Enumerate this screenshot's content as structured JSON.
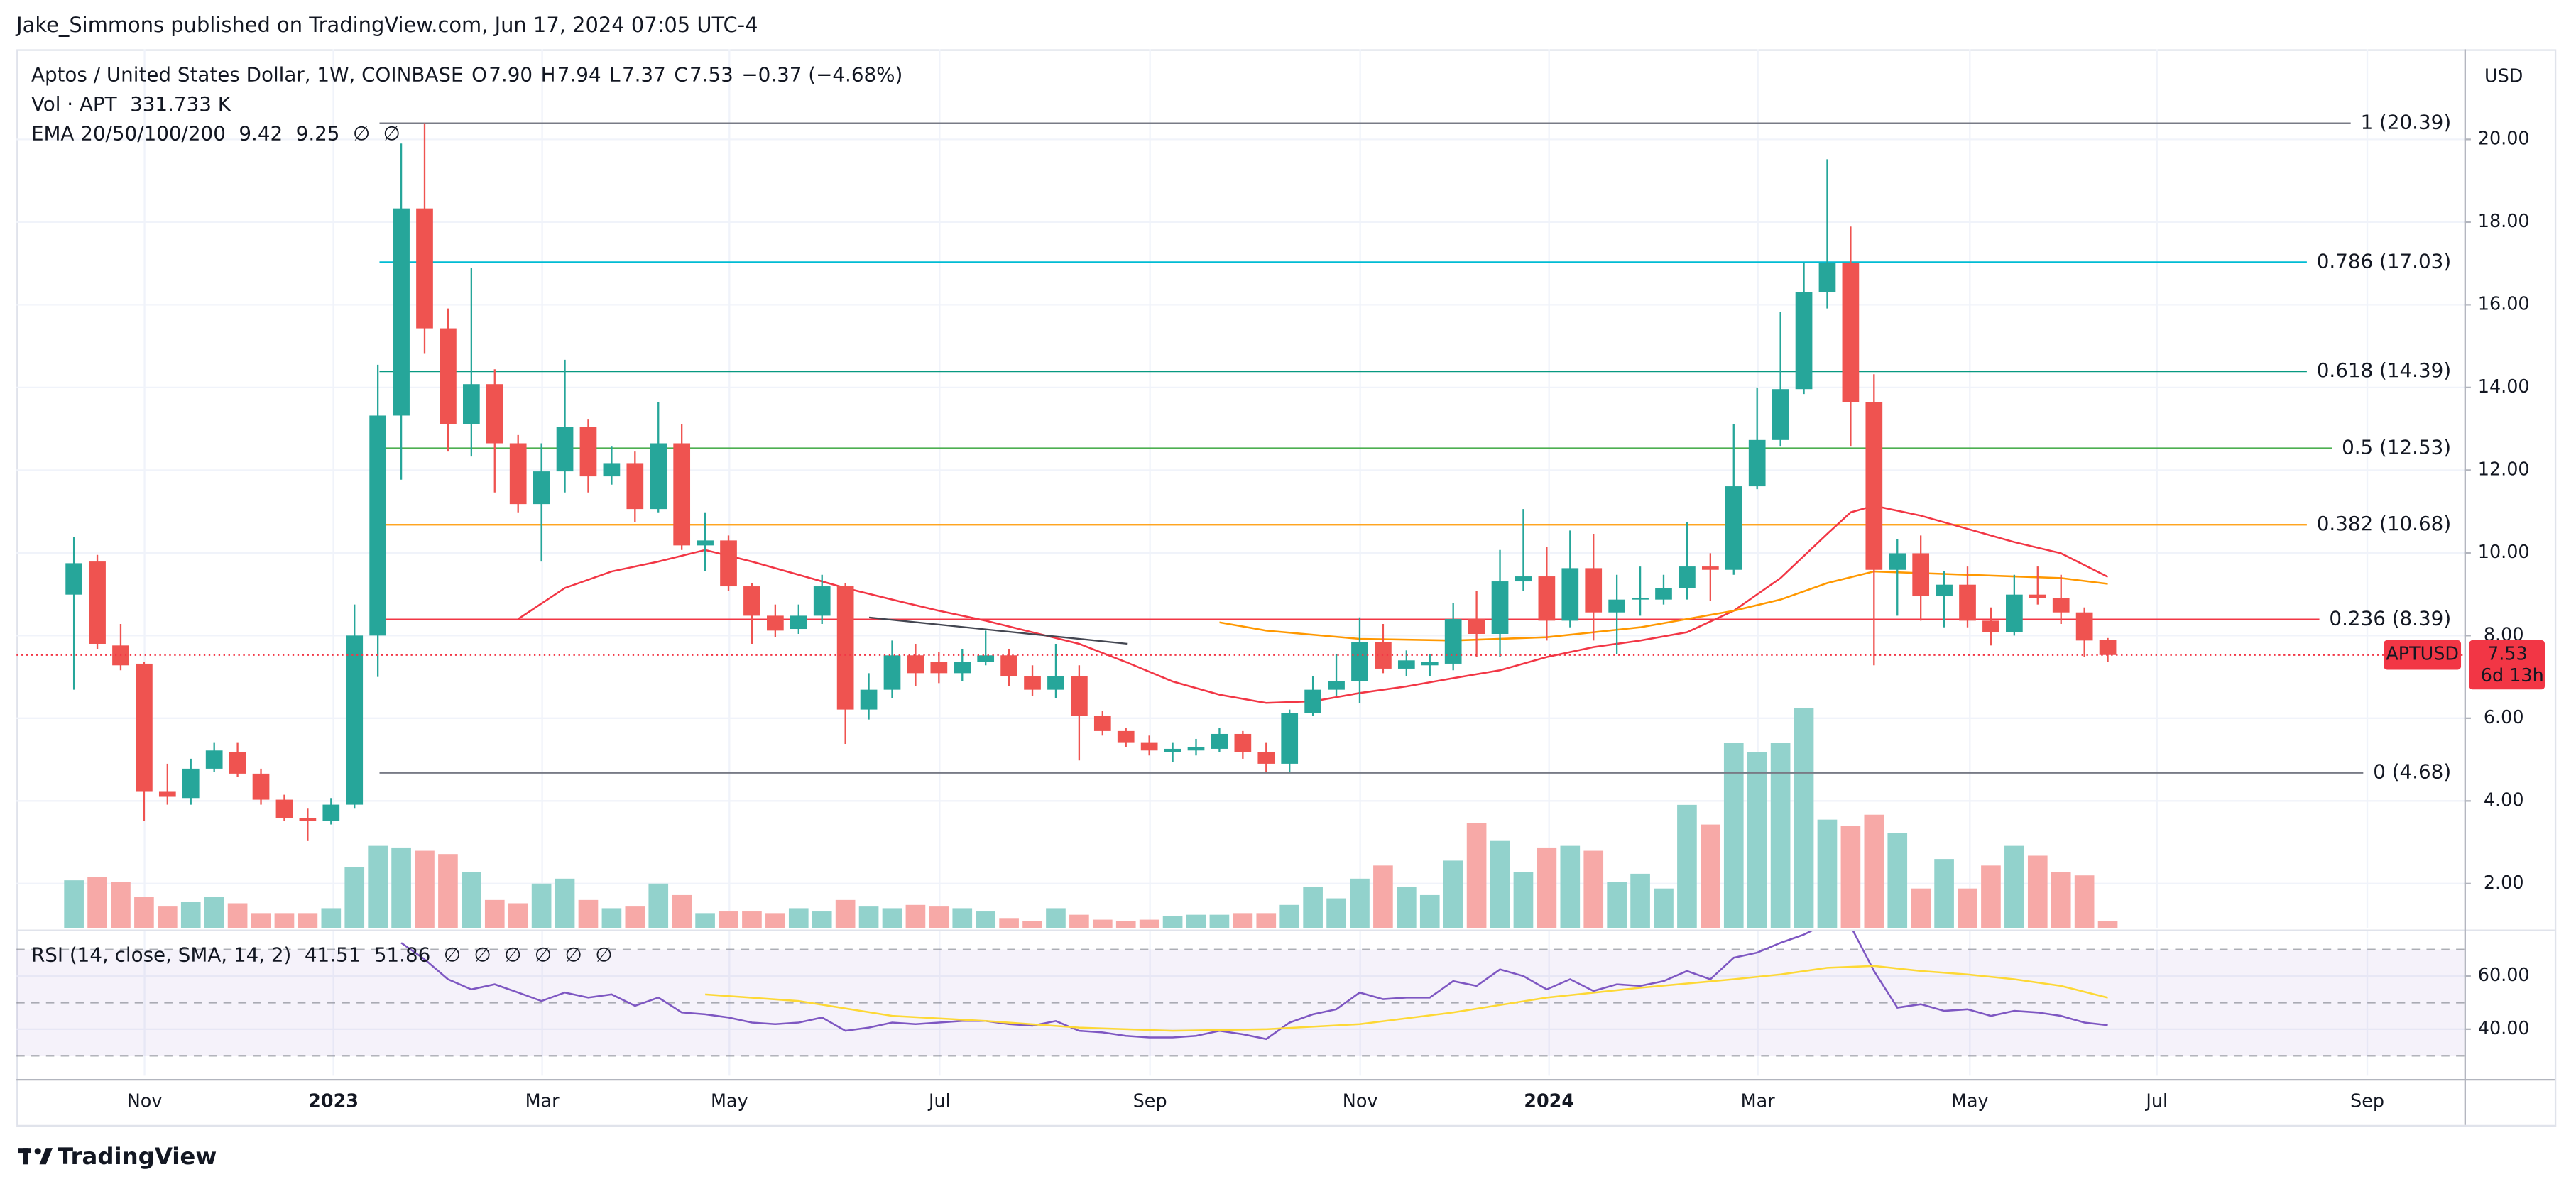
{
  "header": {
    "byline": "Jake_Simmons published on TradingView.com, Jun 17, 2024 07:05 UTC-4"
  },
  "footer": {
    "brand": "TradingView"
  },
  "chart_data": [
    {
      "type": "candlestick",
      "title": "Aptos / United States Dollar, 1W, COINBASE",
      "ohlc_legend": [
        {
          "label": "O",
          "value": "7.90"
        },
        {
          "label": "H",
          "value": "7.94"
        },
        {
          "label": "L",
          "value": "7.37"
        },
        {
          "label": "C",
          "value": "7.53"
        }
      ],
      "change": "−0.37 (−4.68%)",
      "currency": "USD",
      "up_color": "#26a69a",
      "down_color": "#ef5350",
      "candles": {
        "open": [
          8.99,
          9.79,
          7.76,
          7.32,
          4.22,
          4.07,
          4.78,
          5.18,
          4.66,
          4.03,
          3.59,
          3.51,
          3.91,
          8.0,
          13.32,
          18.33,
          15.43,
          13.12,
          14.08,
          12.65,
          11.18,
          11.97,
          13.04,
          11.85,
          12.17,
          11.06,
          12.65,
          10.18,
          10.3,
          9.19,
          8.48,
          8.16,
          8.48,
          9.19,
          6.21,
          6.69,
          7.52,
          7.36,
          7.09,
          7.36,
          7.52,
          7.01,
          6.69,
          7.01,
          6.05,
          5.69,
          5.42,
          5.18,
          5.22,
          5.26,
          5.62,
          5.18,
          4.9,
          6.13,
          6.69,
          6.89,
          7.84,
          7.2,
          7.28,
          7.32,
          8.4,
          8.04,
          9.31,
          9.43,
          8.36,
          9.63,
          8.56,
          8.87,
          8.87,
          9.15,
          9.67,
          9.59,
          11.61,
          12.73,
          13.96,
          16.3,
          17.02,
          13.64,
          9.59,
          9.99,
          8.95,
          9.23,
          8.36,
          8.08,
          8.99,
          8.91,
          8.56,
          7.9
        ],
        "high": [
          10.38,
          9.95,
          8.28,
          7.36,
          4.9,
          5.02,
          5.42,
          5.42,
          4.78,
          4.15,
          3.83,
          4.07,
          8.75,
          14.55,
          19.9,
          20.39,
          15.91,
          16.9,
          14.44,
          12.85,
          12.65,
          14.67,
          13.24,
          12.57,
          12.45,
          13.64,
          13.12,
          10.98,
          10.42,
          9.27,
          8.75,
          8.75,
          9.47,
          9.27,
          7.09,
          7.88,
          7.8,
          7.6,
          7.68,
          8.12,
          7.68,
          7.28,
          7.8,
          7.28,
          6.17,
          5.77,
          5.58,
          5.42,
          5.5,
          5.77,
          5.69,
          5.42,
          6.21,
          7.01,
          7.56,
          8.44,
          8.28,
          7.64,
          7.56,
          8.79,
          9.07,
          10.07,
          11.06,
          10.14,
          10.54,
          10.46,
          9.47,
          9.67,
          9.47,
          10.74,
          9.99,
          13.12,
          14.0,
          15.83,
          17.02,
          19.52,
          17.89,
          14.32,
          10.34,
          10.42,
          9.55,
          9.67,
          8.68,
          9.47,
          9.67,
          9.47,
          8.68,
          7.94
        ],
        "low": [
          6.69,
          7.68,
          7.16,
          3.51,
          3.91,
          3.91,
          4.7,
          4.58,
          3.91,
          3.51,
          3.03,
          3.43,
          3.83,
          7.0,
          11.77,
          14.83,
          12.45,
          12.33,
          11.46,
          10.98,
          9.79,
          11.46,
          11.46,
          11.65,
          10.74,
          10.98,
          10.07,
          9.55,
          9.07,
          7.8,
          7.96,
          8.04,
          8.28,
          5.38,
          5.97,
          6.49,
          6.77,
          6.85,
          6.89,
          7.28,
          6.77,
          6.53,
          6.49,
          4.98,
          5.58,
          5.3,
          5.1,
          4.94,
          5.1,
          5.18,
          5.02,
          4.7,
          4.7,
          6.05,
          6.53,
          6.37,
          7.09,
          7.01,
          7.01,
          7.16,
          7.48,
          7.48,
          9.07,
          7.88,
          8.2,
          7.88,
          7.56,
          8.48,
          8.75,
          8.87,
          8.83,
          9.47,
          11.54,
          12.57,
          13.84,
          15.91,
          12.57,
          7.28,
          8.48,
          8.36,
          8.2,
          8.2,
          7.76,
          8.0,
          8.75,
          8.28,
          7.48,
          7.37
        ],
        "close": [
          9.75,
          7.8,
          7.28,
          4.22,
          4.1,
          4.78,
          5.22,
          4.66,
          4.03,
          3.59,
          3.51,
          3.91,
          8.0,
          13.32,
          18.33,
          15.43,
          13.12,
          14.08,
          12.65,
          11.18,
          11.97,
          13.04,
          11.85,
          12.17,
          11.06,
          12.65,
          10.18,
          10.3,
          9.19,
          8.48,
          8.12,
          8.48,
          9.19,
          6.21,
          6.69,
          7.52,
          7.09,
          7.09,
          7.36,
          7.52,
          7.01,
          6.69,
          7.01,
          6.05,
          5.69,
          5.42,
          5.22,
          5.26,
          5.3,
          5.62,
          5.18,
          4.9,
          6.13,
          6.69,
          6.89,
          7.84,
          7.2,
          7.4,
          7.36,
          8.4,
          8.04,
          9.31,
          9.43,
          8.36,
          9.63,
          8.56,
          8.87,
          8.91,
          9.15,
          9.67,
          9.59,
          11.61,
          12.73,
          13.96,
          16.3,
          17.02,
          13.64,
          9.59,
          9.99,
          8.95,
          9.23,
          8.36,
          8.08,
          8.99,
          8.91,
          8.56,
          7.88,
          7.53
        ]
      },
      "volume": {
        "name": "Vol · APT",
        "last_label": "331.733 K",
        "up_color": "#92d2cc",
        "down_color": "#f7a9a7",
        "ylim": [
          0,
          45000
        ],
        "values": [
          2436,
          2604,
          2352,
          1596,
          1092,
          1344,
          1596,
          1260,
          756,
          756,
          756,
          1008,
          3108,
          4200,
          4116,
          3948,
          3780,
          2856,
          1428,
          1260,
          2268,
          2520,
          1428,
          1008,
          1092,
          2268,
          1680,
          756,
          840,
          840,
          756,
          1008,
          840,
          1428,
          1092,
          1008,
          1176,
          1092,
          1008,
          840,
          504,
          336,
          1008,
          672,
          420,
          336,
          420,
          588,
          672,
          672,
          756,
          756,
          1176,
          2100,
          1512,
          2520,
          3192,
          2100,
          1680,
          3444,
          5376,
          4452,
          2856,
          4116,
          4200,
          3948,
          2352,
          2772,
          2016,
          6300,
          5292,
          9492,
          8988,
          9492,
          11256,
          5544,
          5208,
          5796,
          4872,
          2016,
          3528,
          2016,
          3192,
          4200,
          3696,
          2856,
          2688,
          331.733
        ]
      },
      "ema_legend": {
        "name": "EMA 20/50/100/200",
        "values": [
          "9.42",
          "9.25",
          "∅",
          "∅"
        ],
        "colors": [
          "#f23645",
          "#ff9800",
          "#787b86",
          "#787b86"
        ]
      },
      "series": [
        {
          "color": "#f23645",
          "x": [
            19,
            21,
            23,
            25,
            27,
            29,
            31,
            33,
            35,
            37,
            39,
            41,
            43,
            45,
            47,
            49,
            51,
            53,
            55,
            57,
            59,
            61,
            63,
            65,
            67,
            69,
            71,
            73,
            75,
            76,
            77,
            79,
            81,
            83,
            85,
            87
          ],
          "values": [
            8.4,
            9.15,
            9.55,
            9.79,
            10.07,
            9.79,
            9.47,
            9.15,
            8.87,
            8.6,
            8.36,
            8.08,
            7.8,
            7.36,
            6.89,
            6.57,
            6.37,
            6.41,
            6.61,
            6.77,
            6.97,
            7.16,
            7.48,
            7.72,
            7.88,
            8.08,
            8.6,
            9.39,
            10.46,
            10.98,
            11.14,
            10.9,
            10.58,
            10.26,
            9.99,
            9.42
          ]
        },
        {
          "color": "#ff9800",
          "x": [
            49,
            51,
            55,
            59,
            63,
            67,
            71,
            73,
            75,
            77,
            79,
            81,
            83,
            85,
            87
          ],
          "values": [
            8.32,
            8.12,
            7.92,
            7.88,
            7.96,
            8.2,
            8.6,
            8.87,
            9.27,
            9.55,
            9.51,
            9.47,
            9.43,
            9.39,
            9.25
          ]
        }
      ],
      "fib_levels": [
        {
          "label": "1 (20.39)",
          "value": 20.39,
          "color": "#787b86"
        },
        {
          "label": "0.786 (17.03)",
          "value": 17.03,
          "color": "#00bcd4"
        },
        {
          "label": "0.618 (14.39)",
          "value": 14.39,
          "color": "#089981"
        },
        {
          "label": "0.5 (12.53)",
          "value": 12.53,
          "color": "#4caf50"
        },
        {
          "label": "0.382 (10.68)",
          "value": 10.68,
          "color": "#ff9800"
        },
        {
          "label": "0.236 (8.39)",
          "value": 8.39,
          "color": "#f23645"
        },
        {
          "label": "0 (4.68)",
          "value": 4.68,
          "color": "#787b86"
        }
      ],
      "price_label": {
        "symbol": "APTUSD",
        "value": "7.53",
        "countdown": "6d 13h",
        "color": "#f23645"
      },
      "xlim": [
        -2.46,
        102.25
      ],
      "xticks": [
        {
          "value": 3.02,
          "label": "Nov"
        },
        {
          "value": 11.1,
          "label": "2023"
        },
        {
          "value": 20.03,
          "label": "Mar"
        },
        {
          "value": 28.04,
          "label": "May"
        },
        {
          "value": 37.03,
          "label": "Jul"
        },
        {
          "value": 46.03,
          "label": "Sep"
        },
        {
          "value": 55.02,
          "label": "Nov"
        },
        {
          "value": 63.1,
          "label": "2024"
        },
        {
          "value": 72.03,
          "label": "Mar"
        },
        {
          "value": 81.1,
          "label": "May"
        },
        {
          "value": 89.1,
          "label": "Jul"
        },
        {
          "value": 98.1,
          "label": "Sep"
        }
      ],
      "ylim": [
        0.93,
        22.18
      ],
      "yticks": [
        {
          "value": 2,
          "label": "2.00"
        },
        {
          "value": 4,
          "label": "4.00"
        },
        {
          "value": 6,
          "label": "6.00"
        },
        {
          "value": 8,
          "label": "8.00"
        },
        {
          "value": 10,
          "label": "10.00"
        },
        {
          "value": 12,
          "label": "12.00"
        },
        {
          "value": 14,
          "label": "14.00"
        },
        {
          "value": 16,
          "label": "16.00"
        },
        {
          "value": 18,
          "label": "18.00"
        },
        {
          "value": 20,
          "label": "20.00"
        }
      ],
      "grid": true
    },
    {
      "type": "line",
      "title": "RSI (14, close, SMA, 14, 2)",
      "legend_values": [
        "41.51",
        "51.86",
        "∅",
        "∅",
        "∅",
        "∅",
        "∅",
        "∅"
      ],
      "legend_colors": [
        "#7e57c2",
        "#fdd835",
        "#787b86",
        "#787b86",
        "#787b86",
        "#787b86",
        "#787b86",
        "#787b86"
      ],
      "series": [
        {
          "color": "#7e57c2",
          "x": [
            14,
            15,
            16,
            17,
            18,
            19,
            20,
            21,
            22,
            23,
            24,
            25,
            26,
            27,
            28,
            29,
            30,
            31,
            32,
            33,
            34,
            35,
            36,
            37,
            38,
            39,
            40,
            41,
            42,
            43,
            44,
            45,
            46,
            47,
            48,
            49,
            50,
            51,
            52,
            53,
            54,
            55,
            56,
            57,
            58,
            59,
            60,
            61,
            62,
            63,
            64,
            65,
            66,
            67,
            68,
            69,
            70,
            71,
            72,
            73,
            74,
            75,
            76,
            77,
            78,
            79,
            80,
            81,
            82,
            83,
            84,
            85,
            86,
            87
          ],
          "values": [
            72.5,
            66.3,
            58.8,
            55.0,
            56.9,
            53.8,
            50.6,
            53.8,
            51.9,
            53.1,
            48.8,
            51.9,
            46.3,
            45.6,
            44.4,
            42.5,
            41.9,
            42.5,
            44.4,
            39.4,
            40.6,
            42.5,
            41.9,
            42.5,
            43.1,
            43.1,
            41.9,
            41.3,
            43.1,
            39.4,
            38.8,
            37.5,
            36.9,
            36.9,
            37.5,
            39.4,
            38.1,
            36.3,
            42.5,
            45.6,
            47.5,
            53.8,
            51.3,
            51.9,
            51.9,
            58.1,
            56.3,
            62.5,
            60.0,
            55.0,
            58.8,
            54.4,
            56.9,
            56.3,
            58.1,
            61.9,
            58.8,
            66.9,
            68.8,
            72.5,
            75.6,
            80.0,
            78.8,
            61.9,
            48.1,
            49.4,
            46.9,
            47.5,
            45.0,
            46.9,
            46.3,
            45.0,
            42.5,
            41.51
          ]
        },
        {
          "color": "#fdd835",
          "x": [
            27,
            31,
            35,
            39,
            43,
            47,
            51,
            55,
            59,
            63,
            67,
            71,
            73,
            75,
            77,
            79,
            81,
            83,
            85,
            87
          ],
          "values": [
            53.1,
            50.6,
            45.0,
            43.1,
            40.6,
            39.4,
            40.0,
            41.9,
            46.3,
            51.9,
            55.6,
            58.8,
            60.6,
            63.1,
            63.8,
            61.9,
            60.6,
            58.8,
            56.3,
            51.86
          ]
        }
      ],
      "levels": [
        70,
        50,
        30
      ],
      "band_color": "#7e57c2",
      "xlim": [
        -2.46,
        102.25
      ],
      "ylim": [
        22.5,
        76.9
      ],
      "yticks": [
        {
          "value": 40,
          "label": "40.00"
        },
        {
          "value": 60,
          "label": "60.00"
        }
      ],
      "grid": true
    }
  ]
}
